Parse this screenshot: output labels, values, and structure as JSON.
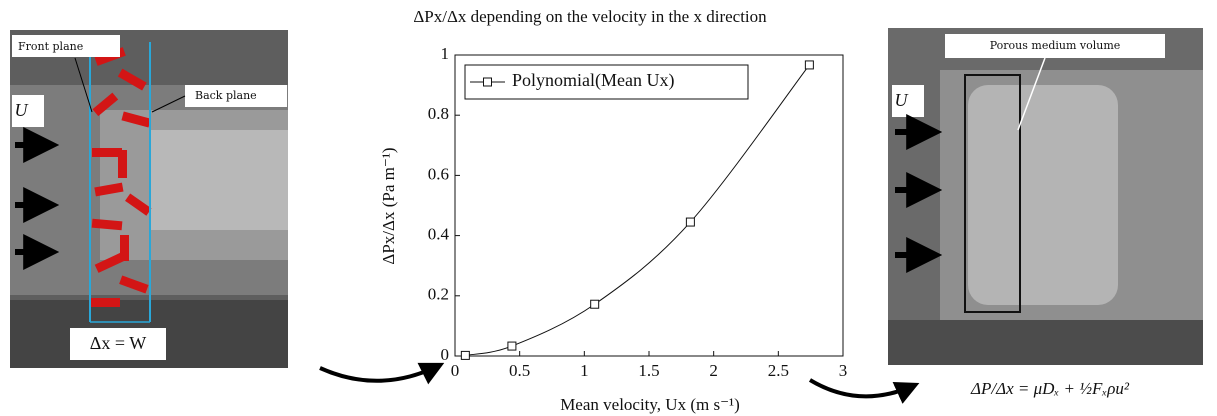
{
  "chart_data": {
    "type": "line",
    "title": "ΔPx/Δx depending on the velocity in the x direction",
    "x_label": "Mean velocity, Ux (m s⁻¹)",
    "y_label": "ΔPx/Δx (Pa m⁻¹)",
    "x": [
      0.08,
      0.44,
      1.08,
      1.82,
      2.74
    ],
    "series": [
      {
        "name": "Polynomial(Mean Ux)",
        "color": "#111111",
        "values": [
          0.002,
          0.033,
          0.172,
          0.445,
          0.967
        ]
      }
    ],
    "xlim": [
      0,
      3
    ],
    "xticks": [
      0,
      0.5,
      1,
      1.5,
      2,
      2.5,
      3
    ],
    "ylim": [
      0,
      1
    ],
    "yticks": [
      0,
      0.2,
      0.4,
      0.6,
      0.8,
      1
    ],
    "legend": "top-left",
    "grid": false
  },
  "left_panel": {
    "front_label": "Front plane",
    "back_label": "Back plane",
    "velocity_label": "U⃗",
    "width_label": "Δx = W"
  },
  "right_panel": {
    "volume_label": "Porous medium volume",
    "velocity_label": "U⃗",
    "equation": "ΔP/Δx = μDₓ + ½Fₓρu²"
  }
}
